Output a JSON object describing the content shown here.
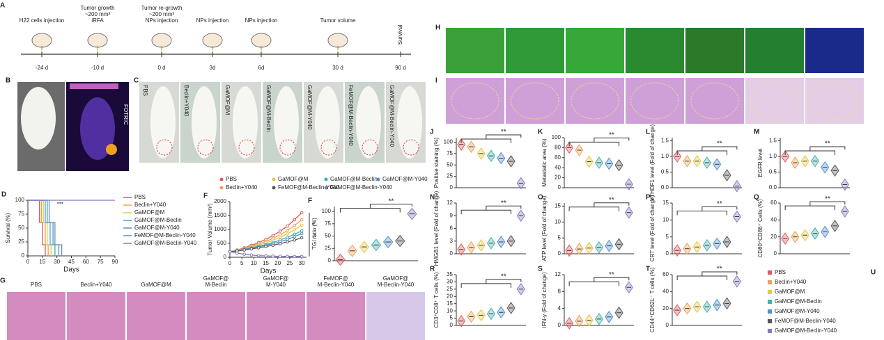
{
  "timeline": {
    "panel": "A",
    "events": [
      {
        "lines": [
          "H22 cells injection"
        ],
        "day": "-24 d"
      },
      {
        "lines": [
          "Tumor growth",
          "~200 mm³",
          "iRFA"
        ],
        "day": "-10 d"
      },
      {
        "lines": [
          "Tumor re-growth",
          "~200 mm³",
          "NPs injection"
        ],
        "day": "0 d"
      },
      {
        "lines": [
          "NPs injection"
        ],
        "day": "3d"
      },
      {
        "lines": [
          "NPs injection"
        ],
        "day": "6d"
      },
      {
        "lines": [
          "Tumor volume"
        ],
        "day": "30 d"
      },
      {
        "lines": [
          "Survival"
        ],
        "day": "90 d"
      }
    ]
  },
  "panel_b": {
    "panel": "B",
    "brand": "FOTRIC"
  },
  "panel_c": {
    "panel": "C",
    "labels": [
      "PBS",
      "Beclin+Y040",
      "GaMOF@M",
      "GaMOF@M-Beclin",
      "GaMOF@M-Y040",
      "FeMOF@M-Beclin-Y040",
      "GaMOF@M-Beclin-Y040"
    ]
  },
  "panel_g": {
    "panel": "G",
    "labels": [
      [
        "PBS"
      ],
      [
        "Beclin+Y040"
      ],
      [
        "GaMOF@M"
      ],
      [
        "GaMOF@",
        "M-Beclin"
      ],
      [
        "GaMOF@",
        "M-Y040"
      ],
      [
        "FeMOF@",
        "M-Beclin-Y040"
      ],
      [
        "GaMOF@",
        "M-Beclin-Y040"
      ]
    ]
  },
  "panel_h": {
    "panel": "H"
  },
  "panel_i": {
    "panel": "I"
  },
  "group_legend": {
    "panel": "U",
    "items": [
      {
        "name": "PBS",
        "color": "#e05a5a"
      },
      {
        "name": "Beclin+Y040",
        "color": "#f0a050"
      },
      {
        "name": "GaMOF@M",
        "color": "#e8c840"
      },
      {
        "name": "GaMOF@M-Beclin",
        "color": "#40b0b0"
      },
      {
        "name": "GaMOF@M-Y040",
        "color": "#5090d0"
      },
      {
        "name": "FeMOF@M-Beclin-Y040",
        "color": "#555555"
      },
      {
        "name": "GaMOF@M-Beclin-Y040",
        "color": "#8878c0"
      }
    ]
  },
  "chart_data": [
    {
      "type": "line",
      "panel": "D",
      "ylabel": "Survival (%)",
      "xlabel": "Days",
      "xlim": [
        0,
        90
      ],
      "xticks": [
        0,
        15,
        30,
        45,
        60,
        75,
        90
      ],
      "ylim": [
        0,
        100
      ],
      "yticks": [
        0,
        25,
        50,
        75,
        100
      ],
      "annotation": "***",
      "legend": "right",
      "series": [
        {
          "name": "PBS",
          "color": "#e05a5a",
          "x": [
            0,
            12,
            12,
            15,
            15,
            18,
            18
          ],
          "values": [
            100,
            100,
            60,
            60,
            20,
            20,
            0
          ]
        },
        {
          "name": "Beclin+Y040",
          "color": "#f0a050",
          "x": [
            0,
            14,
            14,
            18,
            18,
            21,
            21
          ],
          "values": [
            100,
            100,
            60,
            60,
            20,
            20,
            0
          ]
        },
        {
          "name": "GaMOF@M",
          "color": "#e8c840",
          "x": [
            0,
            16,
            16,
            20,
            20,
            24,
            24
          ],
          "values": [
            100,
            100,
            60,
            60,
            20,
            20,
            0
          ]
        },
        {
          "name": "GaMOF@M-Beclin",
          "color": "#40b0b0",
          "x": [
            0,
            18,
            18,
            23,
            23,
            28,
            28
          ],
          "values": [
            100,
            100,
            60,
            60,
            20,
            20,
            0
          ]
        },
        {
          "name": "GaMOF@M-Y040",
          "color": "#5090d0",
          "x": [
            0,
            20,
            20,
            26,
            26,
            32,
            32
          ],
          "values": [
            100,
            100,
            60,
            60,
            20,
            20,
            0
          ]
        },
        {
          "name": "FeMOF@M-Beclin-Y040",
          "color": "#7090b0",
          "x": [
            0,
            22,
            22,
            28,
            28,
            35,
            35
          ],
          "values": [
            100,
            100,
            60,
            60,
            20,
            20,
            0
          ]
        },
        {
          "name": "GaMOF@M-Beclin-Y040",
          "color": "#8878c0",
          "x": [
            0,
            90
          ],
          "values": [
            100,
            100
          ]
        }
      ]
    },
    {
      "type": "line",
      "panel": "F",
      "ylabel": "Tumor Volume (mm³)",
      "xlabel": "Days",
      "x": [
        0,
        3,
        6,
        9,
        12,
        15,
        18,
        21,
        24,
        27,
        30
      ],
      "xlim": [
        0,
        32
      ],
      "xticks": [
        0,
        5,
        10,
        15,
        20,
        25,
        30
      ],
      "ylim": [
        0,
        2000
      ],
      "yticks": [
        0,
        500,
        1000,
        1500,
        2000
      ],
      "annotations": [
        "*",
        "**"
      ],
      "legend": "top",
      "markers": true,
      "series": [
        {
          "name": "PBS",
          "color": "#e05a5a",
          "values": [
            200,
            260,
            340,
            430,
            530,
            640,
            780,
            940,
            1120,
            1350,
            1600
          ]
        },
        {
          "name": "Beclin+Y040",
          "color": "#f0a050",
          "values": [
            200,
            250,
            320,
            400,
            480,
            570,
            680,
            810,
            960,
            1140,
            1350
          ]
        },
        {
          "name": "GaMOF@M",
          "color": "#e8c840",
          "values": [
            200,
            240,
            300,
            370,
            440,
            520,
            610,
            720,
            840,
            990,
            1150
          ]
        },
        {
          "name": "GaMOF@M-Beclin",
          "color": "#40b0b0",
          "values": [
            200,
            235,
            285,
            340,
            400,
            460,
            530,
            620,
            720,
            830,
            950
          ]
        },
        {
          "name": "GaMOF@M-Y040",
          "color": "#5090d0",
          "values": [
            200,
            230,
            275,
            325,
            375,
            430,
            490,
            560,
            640,
            740,
            850
          ]
        },
        {
          "name": "FeMOF@M-Beclin-Y040",
          "color": "#555555",
          "values": [
            200,
            225,
            260,
            300,
            340,
            385,
            430,
            490,
            550,
            620,
            700
          ]
        },
        {
          "name": "GaMOF@M-Beclin-Y040",
          "color": "#8878c0",
          "values": [
            200,
            150,
            110,
            80,
            60,
            50,
            40,
            35,
            30,
            30,
            30
          ]
        }
      ]
    },
    {
      "type": "violin",
      "panel": "F",
      "ylabel": "TGI ratio (%)",
      "ylim": [
        0,
        110
      ],
      "yticks": [
        0,
        25,
        50,
        75,
        100
      ],
      "annotation": "**",
      "values": [
        2,
        20,
        28,
        32,
        38,
        40,
        95
      ]
    },
    {
      "type": "violin",
      "panel": "J",
      "ylabel": "Positive staining (%)",
      "ylim": [
        0,
        110
      ],
      "yticks": [
        0,
        25,
        50,
        75,
        100
      ],
      "annotation": "**",
      "values": [
        95,
        90,
        75,
        70,
        65,
        58,
        10
      ]
    },
    {
      "type": "violin",
      "panel": "K",
      "ylabel": "Metastatic area (%)",
      "ylim": [
        0,
        100
      ],
      "yticks": [
        0,
        20,
        40,
        60,
        80,
        100
      ],
      "annotation": "**",
      "values": [
        80,
        75,
        52,
        50,
        48,
        45,
        7
      ]
    },
    {
      "type": "violin",
      "panel": "L",
      "ylabel": "YTHDF1 level (Fold of change)",
      "ylim": [
        0,
        1.6
      ],
      "yticks": [
        {
          "value": 0,
          "label": "0.0"
        },
        {
          "value": 0.5,
          "label": "0.5"
        },
        {
          "value": 1,
          "label": "1.0"
        },
        {
          "value": 1.5,
          "label": "1.5"
        }
      ],
      "annotation": "**",
      "values": [
        1.0,
        0.85,
        0.85,
        0.8,
        0.75,
        0.4,
        0.05
      ]
    },
    {
      "type": "violin",
      "panel": "M",
      "ylabel": "EGFR level",
      "ylim": [
        0,
        1.6
      ],
      "yticks": [
        {
          "value": 0,
          "label": "0.0"
        },
        {
          "value": 0.5,
          "label": "0.5"
        },
        {
          "value": 1,
          "label": "1.0"
        },
        {
          "value": 1.5,
          "label": "1.5"
        }
      ],
      "annotation": "**",
      "values": [
        1.0,
        0.8,
        0.85,
        0.85,
        0.65,
        0.55,
        0.1
      ]
    },
    {
      "type": "violin",
      "panel": "N",
      "ylabel": "HMGB1 level (Fold of change)",
      "ylim": [
        0,
        12
      ],
      "yticks": [
        0,
        3,
        6,
        9,
        12
      ],
      "annotation": "**",
      "values": [
        1,
        1.5,
        2,
        2.5,
        2.8,
        3,
        9
      ]
    },
    {
      "type": "violin",
      "panel": "O",
      "ylabel": "ATP level (Fold of change)",
      "ylim": [
        0,
        16
      ],
      "yticks": [
        0,
        5,
        10,
        15
      ],
      "annotation": "**",
      "values": [
        1,
        1.5,
        1.8,
        2,
        2.5,
        3,
        13
      ]
    },
    {
      "type": "violin",
      "panel": "P",
      "ylabel": "CRT level (Fold of change)",
      "ylim": [
        0,
        15
      ],
      "yticks": [
        0,
        5,
        10,
        15
      ],
      "annotation": "**",
      "values": [
        1,
        1.5,
        2,
        2.5,
        3,
        3.5,
        11
      ]
    },
    {
      "type": "violin",
      "panel": "Q",
      "ylabel": "CD80⁺CD86⁺ Cells (%)",
      "ylim": [
        0,
        60
      ],
      "yticks": [
        0,
        20,
        40,
        60
      ],
      "annotation": "**",
      "values": [
        18,
        20,
        22,
        24,
        26,
        33,
        50
      ]
    },
    {
      "type": "violin",
      "panel": "R",
      "ylabel": "CD3⁺CD8⁺ T cells (%)",
      "ylim": [
        0,
        35
      ],
      "yticks": [
        0,
        5,
        10,
        15,
        20,
        25,
        30,
        35
      ],
      "annotation": "**",
      "values": [
        3,
        6,
        7,
        8,
        9,
        12,
        25
      ]
    },
    {
      "type": "violin",
      "panel": "S",
      "ylabel": "IFN-γ (Fold of change)",
      "ylim": [
        0,
        12
      ],
      "yticks": [
        0,
        4,
        8,
        12
      ],
      "annotation": "**",
      "values": [
        0.5,
        1,
        1.2,
        1.5,
        2,
        3,
        9
      ]
    },
    {
      "type": "violin",
      "panel": "T",
      "ylabel": "CD44⁺CD62L⁻ T cells (%)",
      "ylim": [
        0,
        60
      ],
      "yticks": [
        0,
        20,
        40,
        60
      ],
      "annotation": "**",
      "values": [
        18,
        20,
        22,
        22,
        24,
        26,
        52
      ]
    }
  ]
}
